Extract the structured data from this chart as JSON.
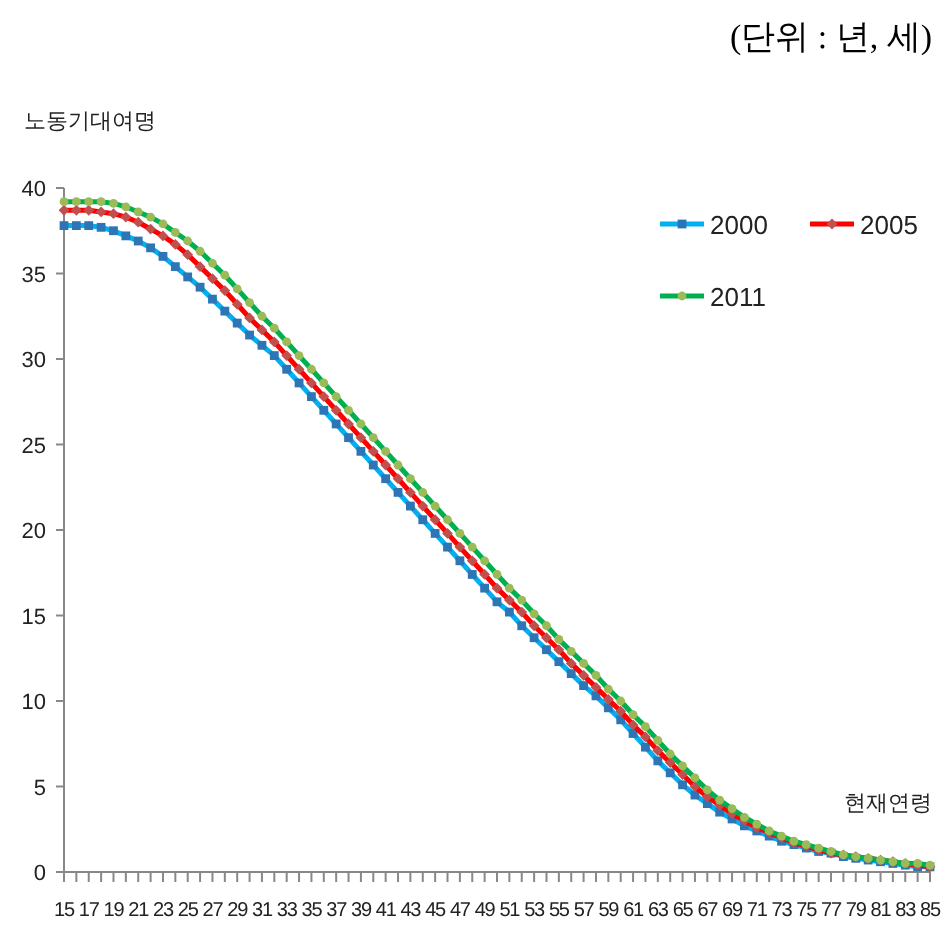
{
  "chart_data": {
    "type": "line",
    "ylabel": "노동기대여명",
    "xlabel": "현재연령",
    "annotations": [
      "(단위 : 년, 세)"
    ],
    "categories": [
      "15",
      null,
      "17",
      null,
      "19",
      null,
      "21",
      null,
      "23",
      null,
      "25",
      null,
      "27",
      null,
      "29",
      null,
      "31",
      null,
      "33",
      null,
      "35",
      null,
      "37",
      null,
      "39",
      null,
      "41",
      null,
      "43",
      null,
      "45",
      null,
      "47",
      null,
      "49",
      null,
      "51",
      null,
      "53",
      null,
      "55",
      null,
      "57",
      null,
      "59",
      null,
      "61",
      null,
      "63",
      null,
      "65",
      null,
      "67",
      null,
      "69",
      null,
      "71",
      null,
      "73",
      null,
      "75",
      null,
      "77",
      null,
      "79",
      null,
      "81",
      null,
      "83",
      null,
      "85"
    ],
    "ylim": [
      0,
      40
    ],
    "yticks": [
      0,
      5,
      10,
      15,
      20,
      25,
      30,
      35,
      40
    ],
    "grid": false,
    "legend": "top right",
    "line_style": "solid",
    "series": [
      {
        "name": "2000",
        "color": "#00b0f0",
        "marker": "square",
        "values": [
          37.8,
          37.8,
          37.8,
          37.7,
          37.5,
          37.2,
          36.9,
          36.5,
          36.0,
          35.4,
          34.8,
          34.2,
          33.5,
          32.8,
          32.1,
          31.4,
          30.8,
          30.2,
          29.4,
          28.6,
          27.8,
          27.0,
          26.2,
          25.4,
          24.6,
          23.8,
          23.0,
          22.2,
          21.4,
          20.6,
          19.8,
          19.0,
          18.2,
          17.4,
          16.6,
          15.8,
          15.2,
          14.4,
          13.7,
          13.0,
          12.3,
          11.6,
          10.9,
          10.3,
          9.6,
          8.9,
          8.1,
          7.3,
          6.5,
          5.8,
          5.1,
          4.5,
          4.0,
          3.5,
          3.1,
          2.7,
          2.4,
          2.1,
          1.8,
          1.6,
          1.4,
          1.2,
          1.1,
          0.9,
          0.8,
          0.7,
          0.6,
          0.5,
          0.4,
          0.3,
          0.3
        ]
      },
      {
        "name": "2005",
        "color": "#ff0000",
        "marker": "diamond",
        "values": [
          38.7,
          38.7,
          38.7,
          38.6,
          38.5,
          38.3,
          38.0,
          37.6,
          37.2,
          36.7,
          36.1,
          35.4,
          34.7,
          34.0,
          33.2,
          32.4,
          31.7,
          31.0,
          30.2,
          29.4,
          28.6,
          27.8,
          27.0,
          26.2,
          25.4,
          24.6,
          23.8,
          23.0,
          22.2,
          21.4,
          20.6,
          19.8,
          19.0,
          18.2,
          17.4,
          16.6,
          15.9,
          15.2,
          14.4,
          13.7,
          13.0,
          12.2,
          11.5,
          10.8,
          10.1,
          9.4,
          8.6,
          7.9,
          7.1,
          6.4,
          5.7,
          5.0,
          4.4,
          3.9,
          3.4,
          3.0,
          2.6,
          2.3,
          2.0,
          1.7,
          1.5,
          1.3,
          1.1,
          1.0,
          0.9,
          0.8,
          0.7,
          0.6,
          0.5,
          0.4,
          0.3
        ]
      },
      {
        "name": "2011",
        "color": "#00b050",
        "marker": "circle",
        "values": [
          39.2,
          39.2,
          39.2,
          39.2,
          39.1,
          38.9,
          38.6,
          38.3,
          37.9,
          37.4,
          36.9,
          36.3,
          35.6,
          34.9,
          34.1,
          33.3,
          32.5,
          31.8,
          31.0,
          30.2,
          29.4,
          28.6,
          27.8,
          27.0,
          26.2,
          25.4,
          24.6,
          23.8,
          23.0,
          22.2,
          21.4,
          20.6,
          19.8,
          19.0,
          18.2,
          17.4,
          16.6,
          15.9,
          15.1,
          14.4,
          13.6,
          12.9,
          12.2,
          11.5,
          10.7,
          10.0,
          9.2,
          8.5,
          7.7,
          6.9,
          6.2,
          5.5,
          4.8,
          4.2,
          3.7,
          3.2,
          2.8,
          2.4,
          2.1,
          1.8,
          1.6,
          1.4,
          1.2,
          1.0,
          0.9,
          0.8,
          0.7,
          0.6,
          0.5,
          0.5,
          0.4
        ]
      }
    ]
  }
}
